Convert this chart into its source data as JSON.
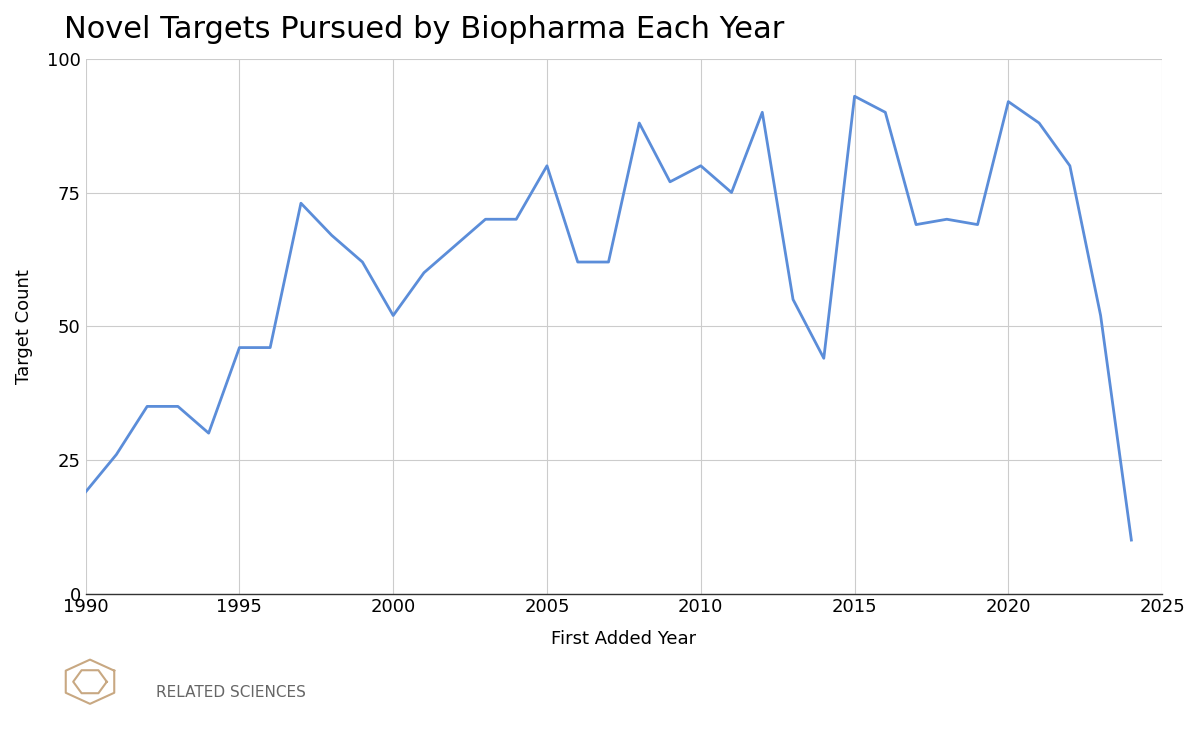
{
  "title": "Novel Targets Pursued by Biopharma Each Year",
  "xlabel": "First Added Year",
  "ylabel": "Target Count",
  "line_color": "#5b8dd9",
  "background_color": "#ffffff",
  "grid_color": "#cccccc",
  "xlim": [
    1990,
    2025
  ],
  "ylim": [
    0,
    100
  ],
  "xticks": [
    1990,
    1995,
    2000,
    2005,
    2010,
    2015,
    2020,
    2025
  ],
  "yticks": [
    0,
    25,
    50,
    75,
    100
  ],
  "years": [
    1990,
    1991,
    1992,
    1993,
    1994,
    1995,
    1996,
    1997,
    1998,
    1999,
    2000,
    2001,
    2002,
    2003,
    2004,
    2005,
    2006,
    2007,
    2008,
    2009,
    2010,
    2011,
    2012,
    2013,
    2014,
    2015,
    2016,
    2017,
    2018,
    2019,
    2020,
    2021,
    2022,
    2023,
    2024
  ],
  "values": [
    19,
    26,
    35,
    35,
    30,
    46,
    46,
    73,
    67,
    62,
    52,
    60,
    65,
    70,
    70,
    80,
    62,
    62,
    88,
    77,
    80,
    75,
    90,
    55,
    44,
    93,
    90,
    69,
    70,
    69,
    92,
    88,
    80,
    52,
    10
  ],
  "title_fontsize": 22,
  "axis_label_fontsize": 13,
  "tick_fontsize": 13,
  "line_width": 2.0,
  "logo_text": "RELATED SCIENCES",
  "logo_color": "#888888"
}
